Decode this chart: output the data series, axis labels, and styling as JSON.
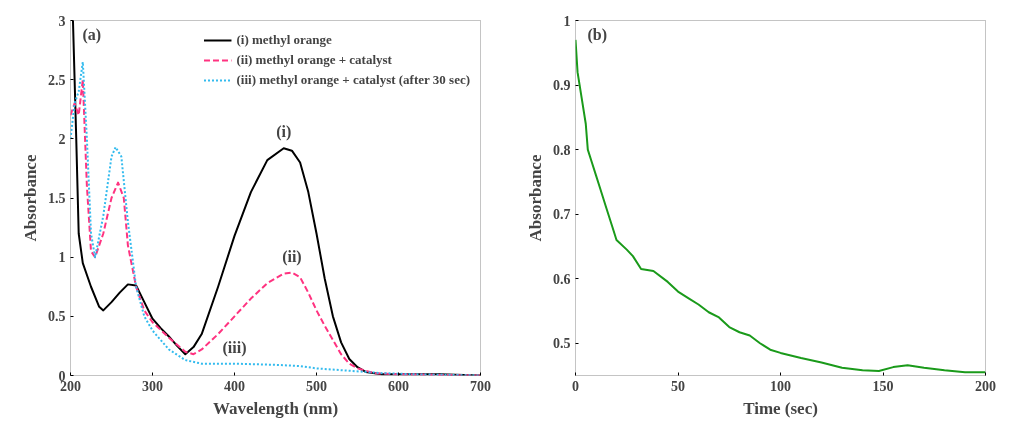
{
  "chart_data": [
    {
      "type": "line",
      "xlabel": "Wavelength (nm)",
      "ylabel": "Absorbance",
      "xlim": [
        200,
        700
      ],
      "ylim": [
        0,
        3
      ],
      "xticks": [
        200,
        300,
        400,
        500,
        600,
        700
      ],
      "yticks": [
        0,
        0.5,
        1,
        1.5,
        2,
        2.5,
        3
      ],
      "grid": false,
      "legend": "top right",
      "annotations": [
        "(a)",
        "(i)",
        "(ii)",
        "(iii)"
      ],
      "series": [
        {
          "name": "(i) methyl orange",
          "color": "#000000",
          "line_style": "solid",
          "x": [
            203,
            207,
            210,
            215,
            225,
            235,
            240,
            250,
            260,
            270,
            280,
            290,
            300,
            310,
            320,
            330,
            340,
            350,
            360,
            380,
            400,
            420,
            440,
            460,
            470,
            480,
            490,
            500,
            510,
            520,
            530,
            540,
            550,
            560,
            580,
            600,
            650,
            700
          ],
          "values": [
            3.0,
            2.0,
            1.2,
            0.95,
            0.75,
            0.58,
            0.55,
            0.62,
            0.7,
            0.77,
            0.76,
            0.62,
            0.48,
            0.4,
            0.33,
            0.25,
            0.18,
            0.24,
            0.35,
            0.75,
            1.18,
            1.55,
            1.82,
            1.92,
            1.9,
            1.8,
            1.55,
            1.2,
            0.82,
            0.5,
            0.28,
            0.14,
            0.07,
            0.03,
            0.01,
            0.01,
            0.01,
            0.0
          ]
        },
        {
          "name": "(ii) methyl orange + catalyst",
          "color": "#ff3380",
          "line_style": "dashed",
          "x": [
            200,
            205,
            210,
            215,
            220,
            225,
            230,
            240,
            250,
            258,
            265,
            270,
            280,
            290,
            300,
            320,
            340,
            350,
            360,
            380,
            400,
            420,
            440,
            460,
            470,
            480,
            490,
            500,
            510,
            520,
            530,
            540,
            550,
            570,
            600,
            700
          ],
          "values": [
            2.2,
            2.3,
            2.2,
            2.5,
            1.6,
            1.05,
            1.0,
            1.2,
            1.5,
            1.63,
            1.5,
            1.1,
            0.75,
            0.55,
            0.45,
            0.32,
            0.2,
            0.18,
            0.22,
            0.35,
            0.5,
            0.65,
            0.78,
            0.86,
            0.87,
            0.83,
            0.7,
            0.55,
            0.42,
            0.3,
            0.18,
            0.1,
            0.06,
            0.02,
            0.01,
            0.0
          ]
        },
        {
          "name": "(iii) methyl orange + catalyst (after 30 sec)",
          "color": "#33bbee",
          "line_style": "dotted",
          "x": [
            200,
            205,
            210,
            215,
            220,
            225,
            230,
            240,
            250,
            255,
            262,
            270,
            280,
            290,
            300,
            320,
            340,
            360,
            400,
            450,
            480,
            500,
            540,
            580,
            620,
            700
          ],
          "values": [
            2.0,
            2.3,
            2.4,
            2.65,
            2.0,
            1.2,
            1.0,
            1.35,
            1.85,
            1.93,
            1.85,
            1.3,
            0.75,
            0.5,
            0.38,
            0.22,
            0.13,
            0.1,
            0.1,
            0.09,
            0.08,
            0.06,
            0.04,
            0.02,
            0.01,
            0.0
          ]
        }
      ]
    },
    {
      "type": "line",
      "xlabel": "Time (sec)",
      "ylabel": "Absorbance",
      "xlim": [
        0,
        200
      ],
      "ylim": [
        0.45,
        1
      ],
      "xticks": [
        0,
        50,
        100,
        150,
        200
      ],
      "yticks": [
        0.5,
        0.6,
        0.7,
        0.8,
        0.9,
        1
      ],
      "grid": false,
      "annotations": [
        "(b)"
      ],
      "series": [
        {
          "color": "#1a9a1a",
          "line_style": "solid",
          "x": [
            0,
            1,
            3,
            5,
            6,
            8,
            10,
            12,
            15,
            18,
            20,
            25,
            28,
            32,
            38,
            45,
            50,
            55,
            60,
            65,
            70,
            75,
            80,
            85,
            90,
            95,
            100,
            110,
            120,
            130,
            140,
            148,
            155,
            162,
            170,
            180,
            190,
            200
          ],
          "values": [
            0.97,
            0.92,
            0.88,
            0.84,
            0.8,
            0.78,
            0.76,
            0.74,
            0.71,
            0.68,
            0.66,
            0.645,
            0.635,
            0.615,
            0.612,
            0.595,
            0.58,
            0.57,
            0.56,
            0.548,
            0.54,
            0.525,
            0.517,
            0.512,
            0.5,
            0.49,
            0.485,
            0.477,
            0.47,
            0.462,
            0.458,
            0.457,
            0.463,
            0.466,
            0.462,
            0.458,
            0.455,
            0.455
          ]
        }
      ]
    }
  ]
}
